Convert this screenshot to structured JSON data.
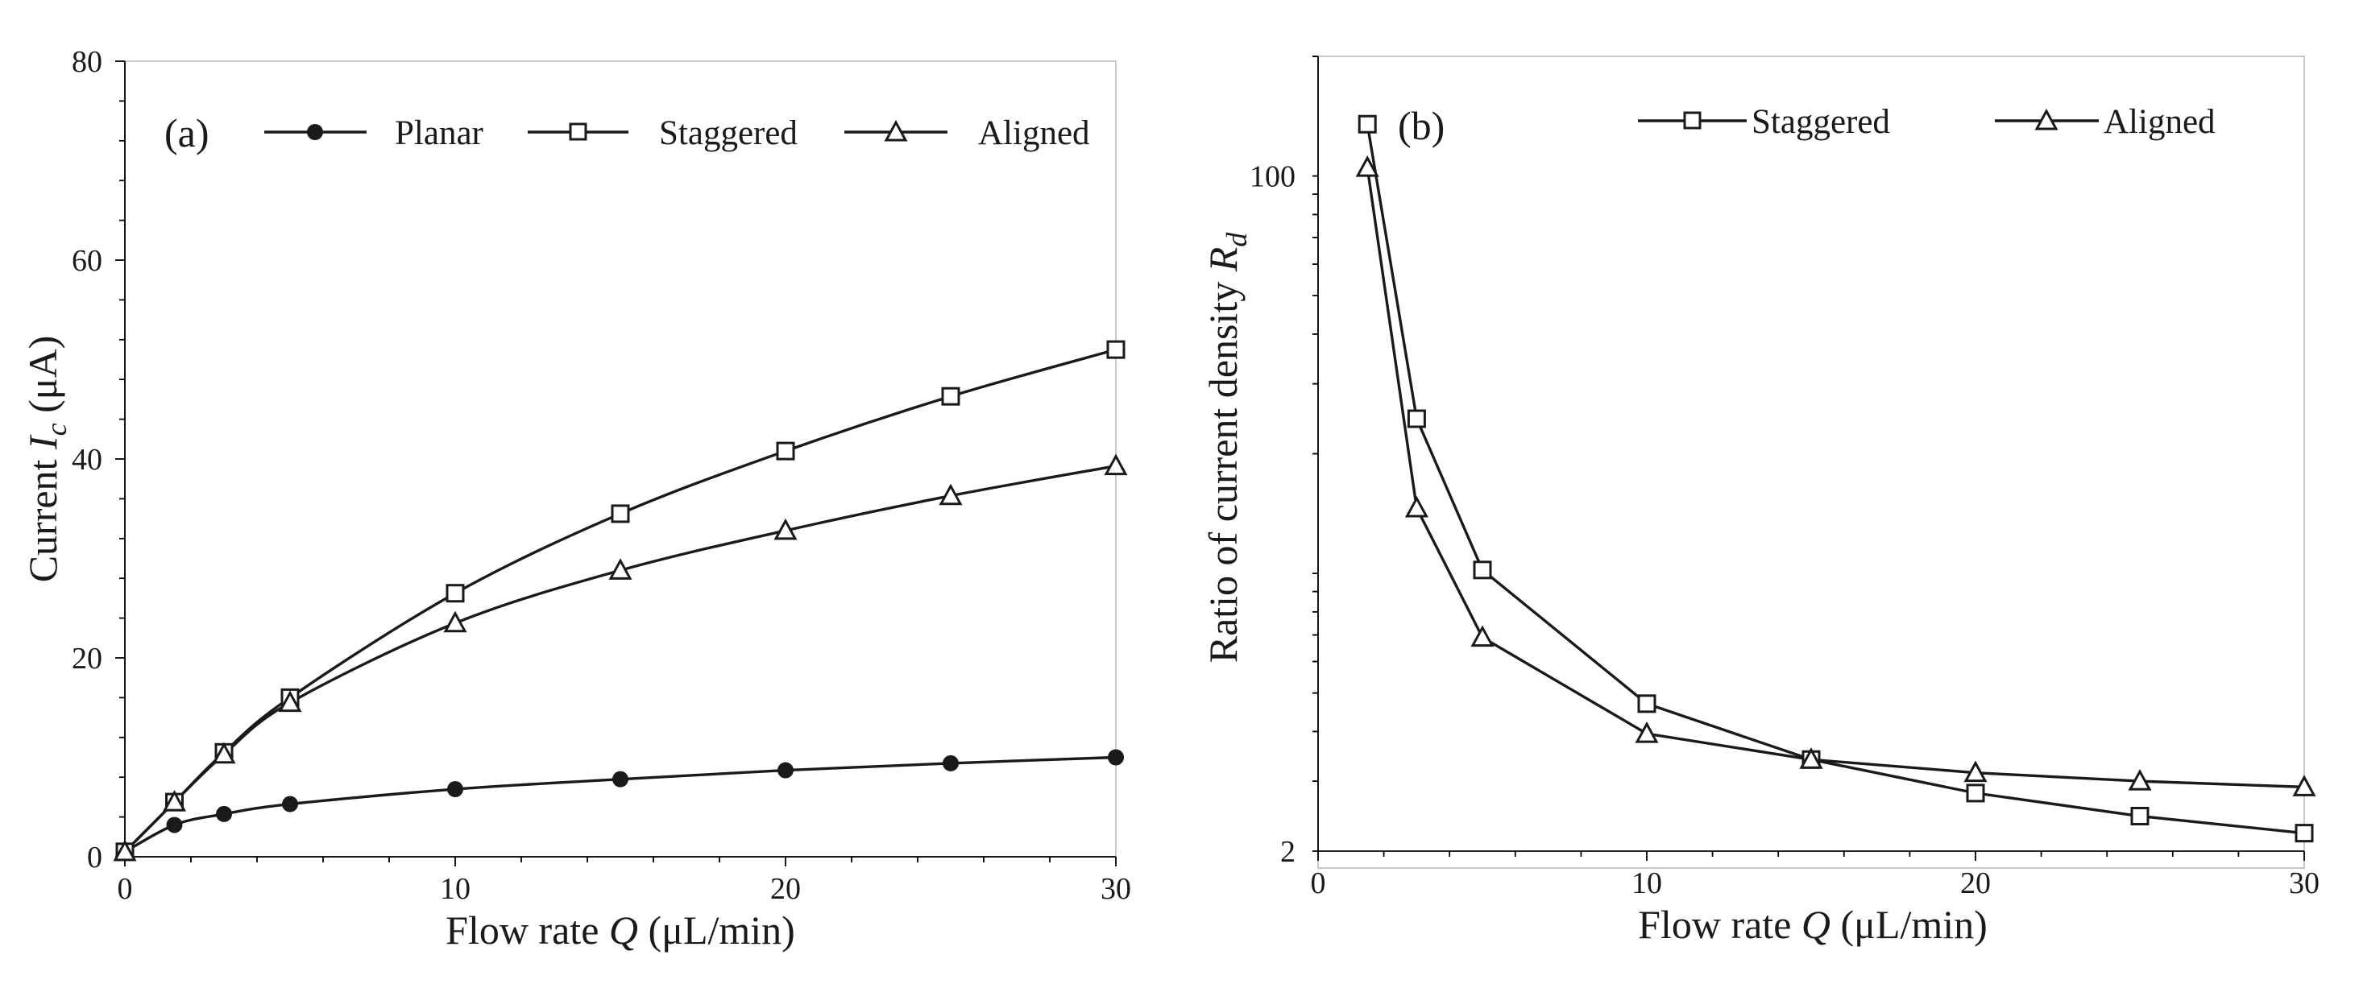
{
  "chart_data": [
    {
      "type": "line",
      "panel_label": "(a)",
      "xlabel_prefix": "Flow rate ",
      "xlabel_symbol": "Q",
      "xlabel_unit": " (μL/min)",
      "ylabel_prefix": "Current ",
      "ylabel_symbol": "I",
      "ylabel_subscript": "c",
      "ylabel_unit": " (μA)",
      "xlim": [
        0,
        30
      ],
      "ylim": [
        0,
        80
      ],
      "xticks": [
        0,
        10,
        20,
        30
      ],
      "yticks": [
        0,
        20,
        40,
        60,
        80
      ],
      "yscale": "linear",
      "legend_position": "top",
      "series": [
        {
          "name": "Planar",
          "marker": "filled-circle",
          "x": [
            0,
            1.5,
            3,
            5,
            10,
            15,
            20,
            25,
            30
          ],
          "y": [
            0.5,
            3.2,
            4.3,
            5.3,
            6.8,
            7.8,
            8.7,
            9.4,
            10.0
          ]
        },
        {
          "name": "Staggered",
          "marker": "open-square",
          "x": [
            0,
            1.5,
            3,
            5,
            10,
            15,
            20,
            25,
            30
          ],
          "y": [
            0.5,
            5.5,
            10.5,
            16.0,
            26.5,
            34.5,
            40.8,
            46.3,
            51.0
          ]
        },
        {
          "name": "Aligned",
          "marker": "open-triangle",
          "x": [
            0,
            1.5,
            3,
            5,
            10,
            15,
            20,
            25,
            30
          ],
          "y": [
            0.5,
            5.5,
            10.3,
            15.5,
            23.5,
            28.8,
            32.8,
            36.3,
            39.3
          ]
        }
      ]
    },
    {
      "type": "line",
      "panel_label": "(b)",
      "xlabel_prefix": "Flow rate ",
      "xlabel_symbol": "Q",
      "xlabel_unit": " (μL/min)",
      "ylabel_prefix": "Ratio of current density ",
      "ylabel_symbol": "R",
      "ylabel_subscript": "d",
      "xlim": [
        0,
        30
      ],
      "ylim": [
        2,
        200
      ],
      "xticks": [
        0,
        10,
        20,
        30
      ],
      "yticks": [
        2,
        100
      ],
      "yscale": "log",
      "legend_position": "top",
      "series": [
        {
          "name": "Staggered",
          "marker": "open-square",
          "x": [
            1.5,
            3,
            5,
            10,
            15,
            20,
            25,
            30
          ],
          "y": [
            135,
            24.5,
            10.2,
            4.7,
            3.4,
            2.8,
            2.45,
            2.22
          ]
        },
        {
          "name": "Aligned",
          "marker": "open-triangle",
          "x": [
            1.5,
            3,
            5,
            10,
            15,
            20,
            25,
            30
          ],
          "y": [
            105,
            14.6,
            6.9,
            3.95,
            3.4,
            3.15,
            3.0,
            2.9
          ]
        }
      ]
    }
  ]
}
